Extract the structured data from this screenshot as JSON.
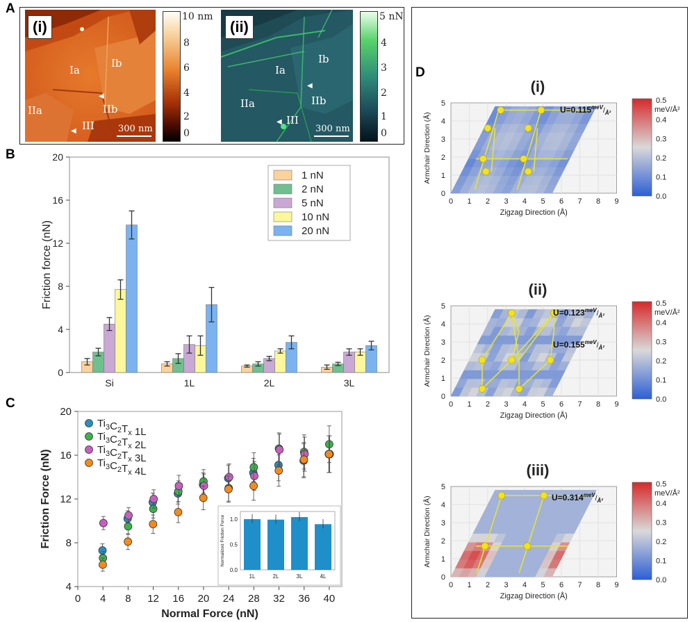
{
  "panelA": {
    "letter": "A",
    "i": {
      "tag": "(i)",
      "regions": [
        "Ia",
        "Ib",
        "IIa",
        "IIb",
        "III"
      ],
      "scale": "300 nm",
      "cb_top": "10 nm",
      "cb_ticks": [
        "8",
        "6",
        "4",
        "2",
        "0"
      ]
    },
    "ii": {
      "tag": "(ii)",
      "regions": [
        "Ia",
        "Ib",
        "IIa",
        "IIb",
        "III"
      ],
      "scale": "300 nm",
      "cb_top": "5 nN",
      "cb_ticks": [
        "4",
        "3",
        "2",
        "1",
        "0"
      ]
    }
  },
  "panelB": {
    "letter": "B"
  },
  "panelC": {
    "letter": "C"
  },
  "panelD": {
    "letter": "D",
    "maps": [
      {
        "tag": "(i)",
        "u": [
          "U=0.115"
        ]
      },
      {
        "tag": "(ii)",
        "u": [
          "U=0.123",
          "U=0.155"
        ]
      },
      {
        "tag": "(iii)",
        "u": [
          "U=0.314"
        ]
      }
    ],
    "unit_super": "meV",
    "unit_sub": "Å²",
    "xlabel": "Zigzag Direction (Å)",
    "ylabel": "Armchair Direction (Å)",
    "xticks": [
      "0",
      "1",
      "2",
      "3",
      "4",
      "5",
      "6",
      "7",
      "8",
      "9"
    ],
    "yticks": [
      "0",
      "1",
      "2",
      "3",
      "4",
      "5"
    ],
    "cb_title": [
      "0.5",
      "meV/Å²"
    ],
    "cb_ticks": [
      "0.4",
      "0.3",
      "0.2",
      "0.1",
      "0.0"
    ],
    "colors": {
      "low": "#2c5fd6",
      "mid": "#d9d9d9",
      "high": "#d62a2a"
    }
  },
  "chart_data": [
    {
      "id": "B",
      "type": "bar",
      "xlabel": "",
      "ylabel": "Friction force (nN)",
      "ylim": [
        0,
        20
      ],
      "yticks": [
        0,
        4,
        8,
        12,
        16,
        20
      ],
      "categories": [
        "Si",
        "1L",
        "2L",
        "3L"
      ],
      "legend_position": "top-right",
      "series": [
        {
          "name": "1 nN",
          "color": "#fcd29b",
          "values": [
            1.0,
            0.8,
            0.6,
            0.5
          ],
          "errors": [
            0.3,
            0.2,
            0.1,
            0.2
          ]
        },
        {
          "name": "2 nN",
          "color": "#6fc08e",
          "values": [
            1.9,
            1.3,
            0.8,
            0.8
          ],
          "errors": [
            0.35,
            0.45,
            0.2,
            0.15
          ]
        },
        {
          "name": "5 nN",
          "color": "#c9a8d5",
          "values": [
            4.5,
            2.6,
            1.3,
            1.9
          ],
          "errors": [
            0.6,
            0.8,
            0.2,
            0.3
          ]
        },
        {
          "name": "10 nN",
          "color": "#fbf79a",
          "values": [
            7.7,
            2.5,
            2.0,
            1.9
          ],
          "errors": [
            0.9,
            0.9,
            0.2,
            0.3
          ]
        },
        {
          "name": "20 nN",
          "color": "#7ab3f0",
          "values": [
            13.7,
            6.3,
            2.8,
            2.5
          ],
          "errors": [
            1.3,
            1.6,
            0.6,
            0.4
          ]
        }
      ]
    },
    {
      "id": "C",
      "type": "scatter",
      "xlabel": "Normal Force (nN)",
      "ylabel": "Friction Force (nN)",
      "xlim": [
        0,
        42
      ],
      "ylim": [
        4,
        20
      ],
      "xticks": [
        0,
        4,
        8,
        12,
        16,
        20,
        24,
        28,
        32,
        36,
        40
      ],
      "yticks": [
        4,
        8,
        12,
        16,
        20
      ],
      "legend_position": "top-left",
      "x": [
        4,
        8,
        12,
        16,
        20,
        24,
        28,
        32,
        36,
        40
      ],
      "series": [
        {
          "name": "Ti3C2Tx 1L",
          "color": "#2a8fc0",
          "values": [
            7.3,
            10.2,
            11.7,
            12.5,
            13.3,
            13.9,
            14.4,
            15.1,
            15.5,
            16.1
          ]
        },
        {
          "name": "Ti3C2Tx 2L",
          "color": "#3cb34a",
          "values": [
            6.6,
            9.5,
            11.1,
            12.7,
            13.6,
            13.0,
            14.9,
            16.6,
            16.3,
            17.0
          ]
        },
        {
          "name": "Ti3C2Tx 3L",
          "color": "#c65fbe",
          "values": [
            9.8,
            10.5,
            12.0,
            13.2,
            13.2,
            14.0,
            14.1,
            16.5,
            16.1,
            16.1
          ]
        },
        {
          "name": "Ti3C2Tx 4L",
          "color": "#f38b1c",
          "values": [
            6.0,
            8.1,
            9.7,
            10.8,
            12.1,
            12.9,
            13.2,
            14.6,
            15.6,
            16.1
          ]
        }
      ],
      "inset": {
        "type": "bar",
        "ylabel": "Normalized Friction Force",
        "categories": [
          "1L",
          "2L",
          "3L",
          "4L"
        ],
        "values": [
          1.0,
          0.99,
          1.04,
          0.9
        ],
        "ylim": [
          0,
          1.15
        ],
        "yticks": [
          0.0,
          0.5,
          1.0
        ],
        "color": "#1f8fca"
      }
    }
  ]
}
